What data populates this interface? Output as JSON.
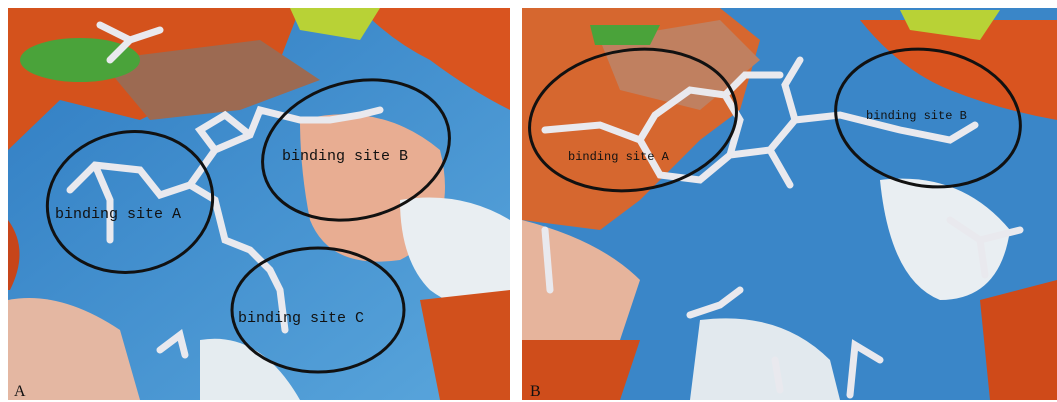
{
  "panels": [
    {
      "label": "A",
      "sites": [
        "binding site A",
        "binding site B",
        "binding site C"
      ]
    },
    {
      "label": "B",
      "sites": [
        "binding site A",
        "binding site B"
      ]
    }
  ]
}
